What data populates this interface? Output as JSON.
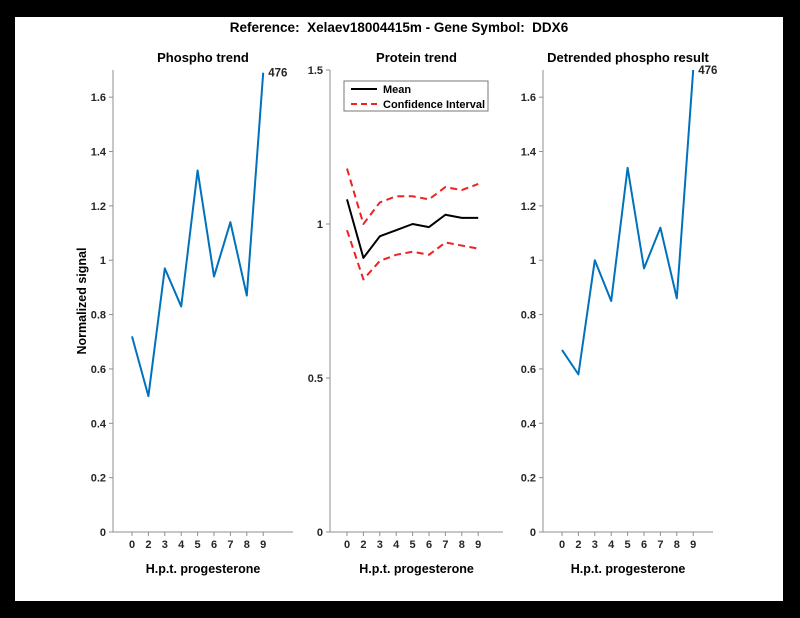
{
  "figure": {
    "title": "Reference:  Xelaev18004415m - Gene Symbol:  DDX6",
    "background_color": "#ffffff",
    "frame_color": "#000000",
    "axis_color": "#8f8f8f",
    "tick_label_color": "#262626",
    "accent_blue": "#0072BD",
    "accent_red": "#ee2222"
  },
  "chart_data": [
    {
      "type": "line",
      "title": "Phospho trend",
      "xlabel": "H.p.t. progesterone",
      "ylabel": "Normalized signal",
      "x_ticklabels": [
        "0",
        "2",
        "3",
        "4",
        "5",
        "6",
        "7",
        "8",
        "9"
      ],
      "ytick_values": [
        0,
        0.2,
        0.4,
        0.6,
        0.8,
        1,
        1.2,
        1.4,
        1.6
      ],
      "ytick_labels": [
        "0",
        "0.2",
        "0.4",
        "0.6",
        "0.8",
        "1",
        "1.2",
        "1.4",
        "1.6"
      ],
      "ylim": [
        0,
        1.7
      ],
      "grid": false,
      "series": [
        {
          "name": "phospho-signal",
          "color": "#0072BD",
          "style": "solid",
          "width": 2,
          "values": [
            0.72,
            0.5,
            0.97,
            0.83,
            1.33,
            0.94,
            1.14,
            0.87,
            1.69
          ]
        }
      ],
      "point_label": {
        "text": "476",
        "series": 0,
        "index": 8
      }
    },
    {
      "type": "line",
      "title": "Protein trend",
      "xlabel": "H.p.t. progesterone",
      "ylabel": "",
      "x_ticklabels": [
        "0",
        "2",
        "3",
        "4",
        "5",
        "6",
        "7",
        "8",
        "9"
      ],
      "ytick_values": [
        0,
        0.5,
        1,
        1.5
      ],
      "ytick_labels": [
        "0",
        "0.5",
        "1",
        "1.5"
      ],
      "ylim": [
        0,
        1.5
      ],
      "grid": false,
      "legend": {
        "position": "top-left-inside",
        "entries": [
          {
            "label": "Mean",
            "color": "#000000",
            "style": "solid"
          },
          {
            "label": "Confidence Interval",
            "color": "#ee2222",
            "style": "dashed"
          }
        ]
      },
      "series": [
        {
          "name": "ci-upper",
          "color": "#ee2222",
          "style": "dashed",
          "width": 2,
          "values": [
            1.18,
            1.0,
            1.07,
            1.09,
            1.09,
            1.08,
            1.12,
            1.11,
            1.13
          ]
        },
        {
          "name": "ci-lower",
          "color": "#ee2222",
          "style": "dashed",
          "width": 2,
          "values": [
            0.98,
            0.82,
            0.88,
            0.9,
            0.91,
            0.9,
            0.94,
            0.93,
            0.92
          ]
        },
        {
          "name": "mean",
          "color": "#000000",
          "style": "solid",
          "width": 2,
          "values": [
            1.08,
            0.89,
            0.96,
            0.98,
            1.0,
            0.99,
            1.03,
            1.02,
            1.02
          ]
        }
      ]
    },
    {
      "type": "line",
      "title": "Detrended phospho result",
      "xlabel": "H.p.t. progesterone",
      "ylabel": "",
      "x_ticklabels": [
        "0",
        "2",
        "3",
        "4",
        "5",
        "6",
        "7",
        "8",
        "9"
      ],
      "ytick_values": [
        0,
        0.2,
        0.4,
        0.6,
        0.8,
        1,
        1.2,
        1.4,
        1.6
      ],
      "ytick_labels": [
        "0",
        "0.2",
        "0.4",
        "0.6",
        "0.8",
        "1",
        "1.2",
        "1.4",
        "1.6"
      ],
      "ylim": [
        0,
        1.7
      ],
      "grid": false,
      "series": [
        {
          "name": "detrended-phospho",
          "color": "#0072BD",
          "style": "solid",
          "width": 2,
          "values": [
            0.67,
            0.58,
            1.0,
            0.85,
            1.34,
            0.97,
            1.12,
            0.86,
            1.7
          ]
        }
      ],
      "point_label": {
        "text": "476",
        "series": 0,
        "index": 8
      }
    }
  ]
}
